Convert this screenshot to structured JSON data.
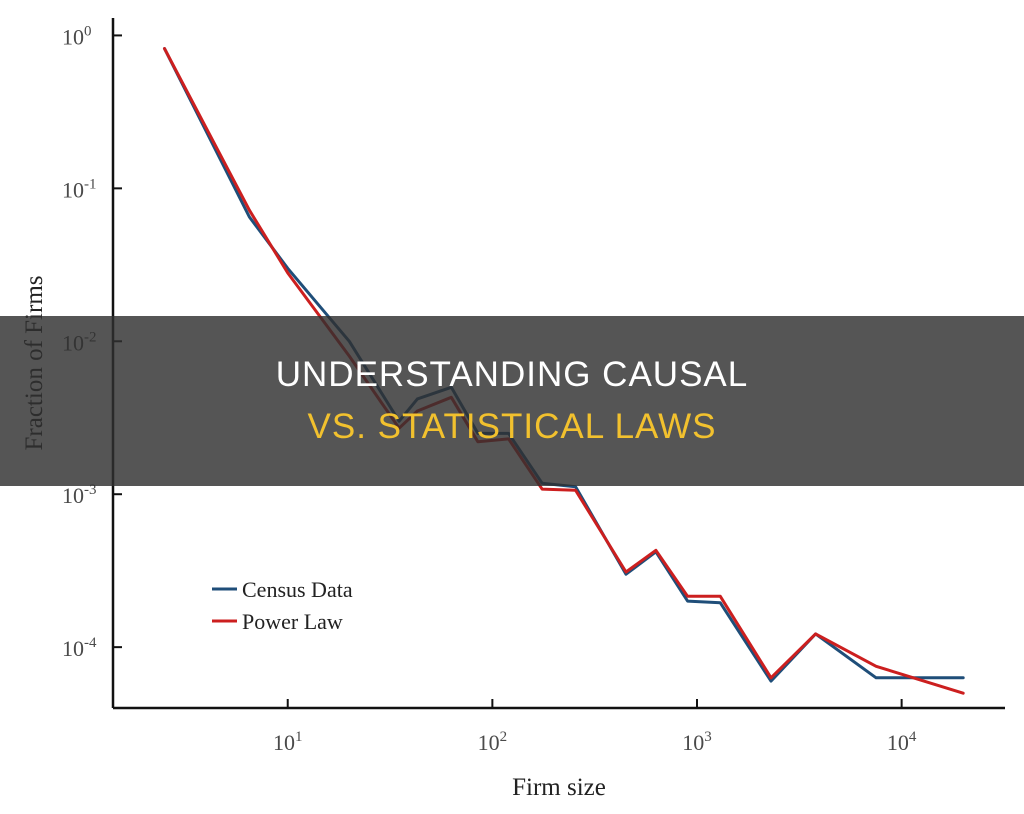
{
  "banner": {
    "line1": "UNDERSTANDING CAUSAL",
    "line2": "VS. STATISTICAL LAWS",
    "line2_color": "#f2c12e"
  },
  "chart_data": {
    "type": "line",
    "title": "",
    "xlabel": "Firm size",
    "ylabel": "Fraction of Firms",
    "xscale": "log",
    "yscale": "log",
    "xlim": [
      1.4,
      32000
    ],
    "ylim": [
      4e-05,
      1.3
    ],
    "x_ticks": [
      {
        "value": 10,
        "base": "10",
        "exp": "1"
      },
      {
        "value": 100,
        "base": "10",
        "exp": "2"
      },
      {
        "value": 1000,
        "base": "10",
        "exp": "3"
      },
      {
        "value": 10000,
        "base": "10",
        "exp": "4"
      }
    ],
    "y_ticks": [
      {
        "value": 1,
        "base": "10",
        "exp": "0"
      },
      {
        "value": 0.1,
        "base": "10",
        "exp": "-1"
      },
      {
        "value": 0.01,
        "base": "10",
        "exp": "-2"
      },
      {
        "value": 0.001,
        "base": "10",
        "exp": "-3"
      },
      {
        "value": 0.0001,
        "base": "10",
        "exp": "-4"
      }
    ],
    "grid": false,
    "legend_position": "bottom-left",
    "series": [
      {
        "name": "Census Data",
        "color": "#1f4e79",
        "points": [
          [
            2.5,
            0.82
          ],
          [
            6.5,
            0.065
          ],
          [
            10,
            0.03
          ],
          [
            20,
            0.01
          ],
          [
            35,
            0.003
          ],
          [
            43,
            0.0042
          ],
          [
            63,
            0.005
          ],
          [
            85,
            0.0025
          ],
          [
            120,
            0.0025
          ],
          [
            175,
            0.00118
          ],
          [
            255,
            0.00112
          ],
          [
            450,
            0.0003
          ],
          [
            630,
            0.00042
          ],
          [
            900,
            0.0002
          ],
          [
            1300,
            0.000195
          ],
          [
            2300,
            6e-05
          ],
          [
            3800,
            0.000122
          ],
          [
            7500,
            6.3e-05
          ],
          [
            20000,
            6.3e-05
          ]
        ]
      },
      {
        "name": "Power Law",
        "color": "#cc1f1f",
        "points": [
          [
            2.5,
            0.82
          ],
          [
            6.5,
            0.072
          ],
          [
            10,
            0.028
          ],
          [
            20,
            0.008
          ],
          [
            35,
            0.0027
          ],
          [
            43,
            0.0035
          ],
          [
            63,
            0.0043
          ],
          [
            85,
            0.0022
          ],
          [
            120,
            0.0023
          ],
          [
            175,
            0.00108
          ],
          [
            255,
            0.00106
          ],
          [
            450,
            0.00031
          ],
          [
            630,
            0.00043
          ],
          [
            900,
            0.000215
          ],
          [
            1300,
            0.000215
          ],
          [
            2300,
            6.3e-05
          ],
          [
            3800,
            0.000122
          ],
          [
            7500,
            7.5e-05
          ],
          [
            20000,
            5e-05
          ]
        ]
      }
    ]
  }
}
